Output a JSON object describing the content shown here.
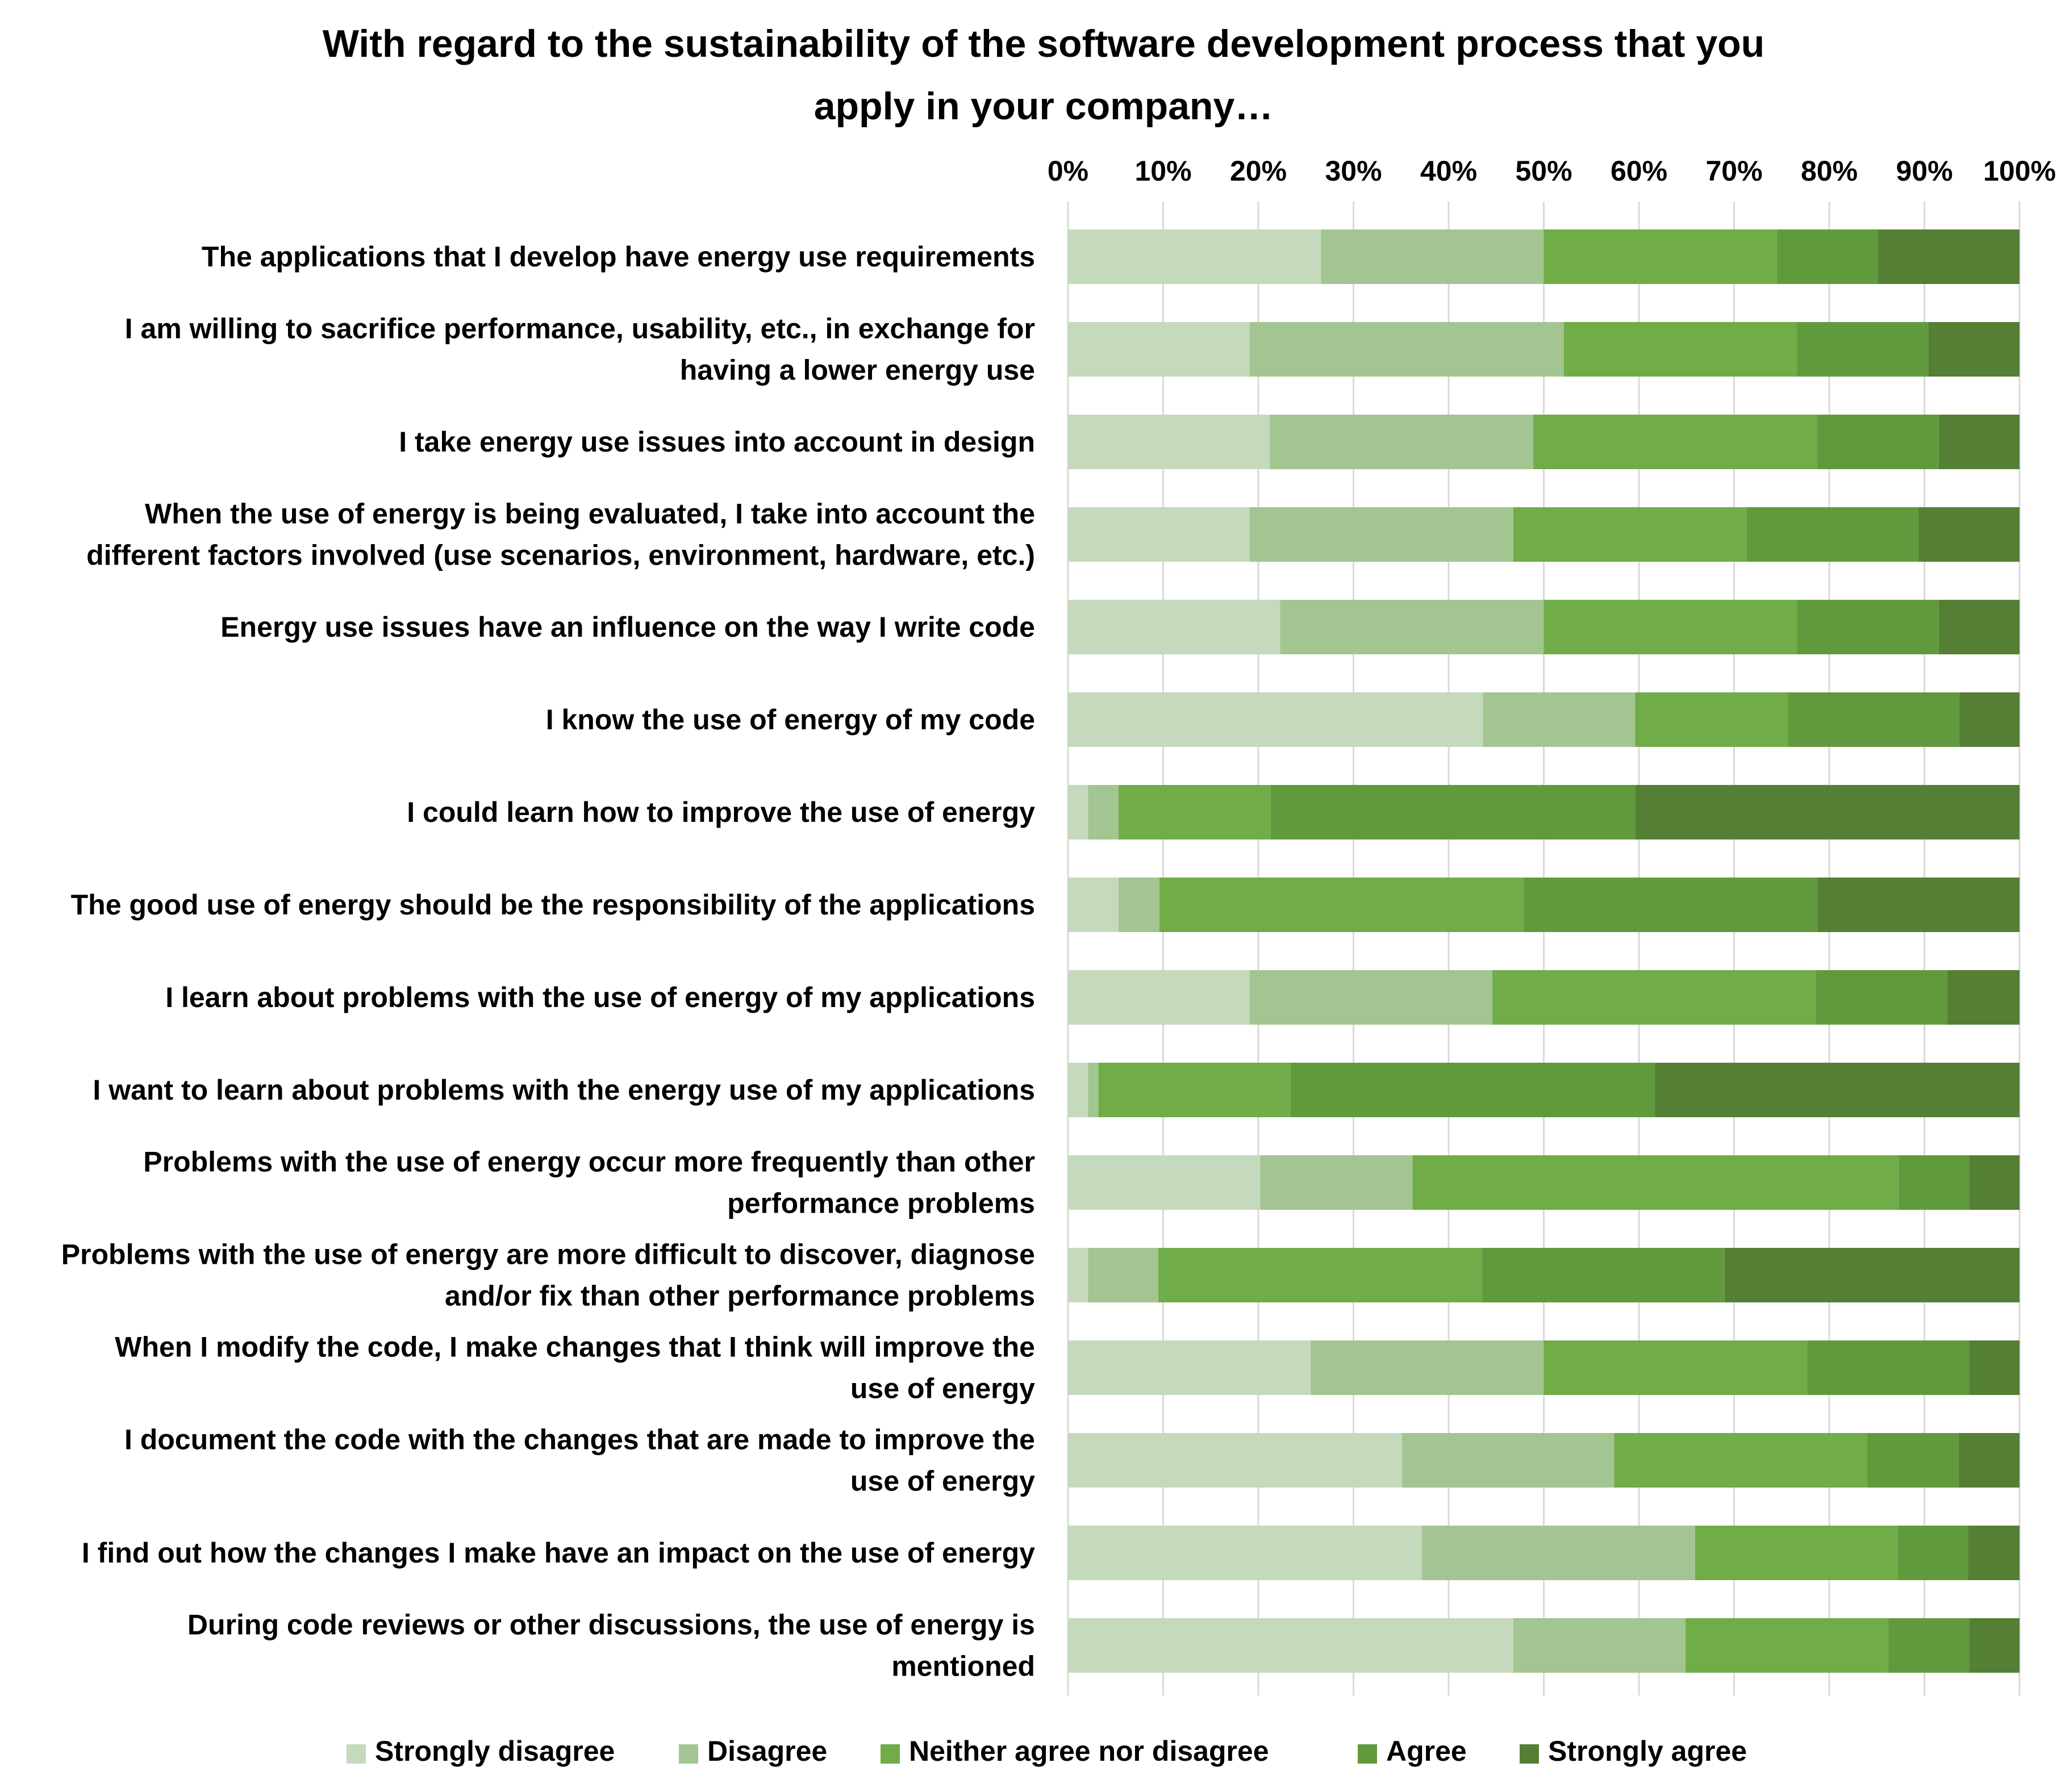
{
  "chart_data": {
    "type": "bar",
    "orientation": "horizontal",
    "stacked": true,
    "percent": true,
    "title": "With regard to the sustainability of the software development process that you apply in your company…",
    "title_lines": [
      "With regard to the sustainability of the software development process that you",
      "apply in your company…"
    ],
    "xlabel": "",
    "ylabel": "",
    "xlim": [
      0,
      100
    ],
    "x_ticks": [
      "0%",
      "10%",
      "20%",
      "30%",
      "40%",
      "50%",
      "60%",
      "70%",
      "80%",
      "90%",
      "100%"
    ],
    "x_tick_values": [
      0,
      10,
      20,
      30,
      40,
      50,
      60,
      70,
      80,
      90,
      100
    ],
    "grid": true,
    "legend_position": "bottom",
    "categories": [
      "The applications that I develop have energy use requirements",
      "I am willing to sacrifice performance, usability, etc., in exchange for having a lower energy use",
      "I take energy use issues into account in design",
      "When the use of energy is being evaluated, I take into account the different factors involved (use scenarios, environment, hardware, etc.)",
      "Energy use issues have an influence on the way I write code",
      "I know the use of energy of my code",
      "I could learn how to improve the use of energy",
      "The good use of energy should be the responsibility of the applications",
      "I learn about problems with the use of energy of my applications",
      "I want to learn about problems with the energy use of my applications",
      "Problems with the use of energy occur more frequently than other performance problems",
      "Problems with the use of energy are more difficult to discover, diagnose and/or fix than other performance problems",
      "When I modify the code, I make changes that I think will improve the use of energy",
      "I document the code with the changes that are made to improve the use of energy",
      "I find out how the changes I make have an impact on the use of energy",
      "During code reviews or other discussions, the use of energy is mentioned"
    ],
    "category_lines": [
      [
        "The applications that I develop have energy use requirements"
      ],
      [
        "I am willing to sacrifice performance, usability, etc., in exchange for",
        "having a lower energy use"
      ],
      [
        "I take energy use issues into account in design"
      ],
      [
        "When the use of energy is being evaluated, I take into account the",
        "different factors involved (use scenarios, environment, hardware, etc.)"
      ],
      [
        "Energy use issues have an influence on the way I write code"
      ],
      [
        "I know the use of energy of my code"
      ],
      [
        "I could learn how to improve the use of energy"
      ],
      [
        "The good use of energy should be the responsibility of the applications"
      ],
      [
        "I learn about problems with the use of energy of my applications"
      ],
      [
        "I want to learn about problems with the energy use of my applications"
      ],
      [
        "Problems with the use of energy occur more frequently than other",
        "performance problems"
      ],
      [
        "Problems with the use of energy are more difficult to discover, diagnose",
        "and/or fix than other performance problems"
      ],
      [
        "When I modify the code, I make changes that I think will improve the",
        "use of energy"
      ],
      [
        "I document the code with the changes that are made to improve the",
        "use of energy"
      ],
      [
        "I find out how the changes I make have an impact on the use of energy"
      ],
      [
        "During code reviews or other discussions, the use of energy is",
        "mentioned"
      ]
    ],
    "series": [
      {
        "name": "Strongly disagree",
        "color": "#c5d9bd",
        "values": [
          26.6,
          19.1,
          21.2,
          19.1,
          22.3,
          43.6,
          2.1,
          5.3,
          19.1,
          2.1,
          20.2,
          2.1,
          25.5,
          35.1,
          37.2,
          46.8
        ]
      },
      {
        "name": "Disagree",
        "color": "#a3c591",
        "values": [
          23.4,
          33.0,
          27.7,
          27.7,
          27.7,
          16.0,
          3.2,
          4.3,
          25.5,
          1.1,
          16.0,
          7.4,
          24.5,
          22.3,
          28.7,
          18.1
        ]
      },
      {
        "name": "Neither agree nor disagree",
        "color": "#70ac47",
        "values": [
          24.5,
          24.5,
          29.8,
          24.5,
          26.6,
          16.0,
          16.0,
          38.3,
          34.0,
          20.2,
          51.1,
          34.0,
          27.7,
          26.6,
          21.3,
          21.3
        ]
      },
      {
        "name": "Agree",
        "color": "#619a3d",
        "values": [
          10.6,
          13.8,
          12.8,
          18.1,
          14.9,
          18.1,
          38.3,
          30.9,
          13.8,
          38.3,
          7.4,
          25.5,
          17.0,
          9.6,
          7.4,
          8.5
        ]
      },
      {
        "name": "Strongly agree",
        "color": "#547f35",
        "values": [
          14.9,
          9.6,
          8.5,
          10.6,
          8.5,
          6.3,
          40.4,
          21.2,
          7.6,
          38.3,
          5.3,
          31.0,
          5.3,
          6.4,
          5.4,
          5.3
        ]
      }
    ]
  }
}
